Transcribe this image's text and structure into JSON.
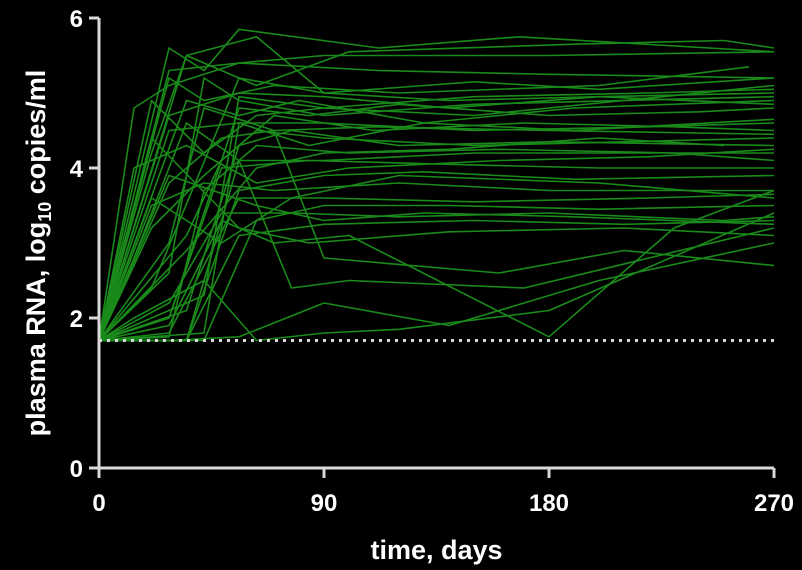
{
  "chart_data": {
    "type": "line",
    "xlabel": "time, days",
    "ylabel_main": "plasma RNA, log",
    "ylabel_sub": "10",
    "ylabel_tail": " copies/ml",
    "xlim": [
      0,
      270
    ],
    "ylim": [
      0,
      6
    ],
    "xticks": [
      0,
      90,
      180,
      270
    ],
    "yticks": [
      0,
      2,
      4,
      6
    ],
    "grid": false,
    "legend": "none",
    "colors": {
      "line": "#1a8a1a",
      "axis": "#d9d9d9",
      "threshold": "#d9d9d9",
      "background": "#000000"
    },
    "threshold": {
      "y": 1.7,
      "style": "dotted"
    },
    "series": [
      {
        "x": [
          0,
          14,
          28,
          56,
          90,
          180,
          270
        ],
        "y": [
          1.7,
          4.8,
          5.1,
          5.4,
          5.5,
          5.5,
          5.55
        ]
      },
      {
        "x": [
          0,
          28,
          42,
          56,
          112,
          168,
          270
        ],
        "y": [
          1.7,
          5.6,
          5.3,
          5.85,
          5.6,
          5.75,
          5.55
        ]
      },
      {
        "x": [
          0,
          21,
          35,
          63,
          100,
          190,
          250,
          270
        ],
        "y": [
          1.7,
          4.2,
          5.5,
          5.1,
          5.55,
          5.65,
          5.7,
          5.6
        ]
      },
      {
        "x": [
          0,
          28,
          56,
          112,
          180,
          270
        ],
        "y": [
          1.7,
          5.3,
          5.4,
          5.3,
          5.25,
          5.2
        ]
      },
      {
        "x": [
          0,
          35,
          63,
          90,
          150,
          200,
          270
        ],
        "y": [
          1.7,
          5.5,
          5.75,
          5.0,
          5.15,
          5.05,
          5.2
        ]
      },
      {
        "x": [
          0,
          28,
          42,
          70,
          120,
          200,
          260
        ],
        "y": [
          1.7,
          5.2,
          4.9,
          5.1,
          5.0,
          5.1,
          5.35
        ]
      },
      {
        "x": [
          0,
          21,
          56,
          90,
          140,
          200,
          270
        ],
        "y": [
          1.7,
          2.4,
          5.2,
          5.0,
          4.9,
          4.95,
          5.0
        ]
      },
      {
        "x": [
          0,
          35,
          56,
          80,
          130,
          190,
          270
        ],
        "y": [
          1.7,
          4.9,
          4.7,
          4.9,
          4.6,
          4.8,
          4.9
        ]
      },
      {
        "x": [
          0,
          28,
          56,
          84,
          120,
          180,
          240,
          270
        ],
        "y": [
          1.7,
          2.0,
          4.8,
          4.7,
          4.85,
          4.7,
          4.75,
          4.8
        ]
      },
      {
        "x": [
          0,
          42,
          56,
          90,
          150,
          220,
          270
        ],
        "y": [
          1.7,
          1.8,
          4.6,
          4.6,
          4.5,
          4.55,
          4.6
        ]
      },
      {
        "x": [
          0,
          28,
          49,
          70,
          110,
          180,
          270
        ],
        "y": [
          1.7,
          3.8,
          4.4,
          4.5,
          4.55,
          4.5,
          4.45
        ]
      },
      {
        "x": [
          0,
          21,
          42,
          63,
          90,
          150,
          210,
          270
        ],
        "y": [
          1.7,
          3.2,
          3.9,
          4.5,
          4.4,
          4.3,
          4.35,
          4.4
        ]
      },
      {
        "x": [
          0,
          35,
          56,
          77,
          120,
          180,
          270
        ],
        "y": [
          1.7,
          2.1,
          4.3,
          4.5,
          4.3,
          4.35,
          4.3
        ]
      },
      {
        "x": [
          0,
          28,
          42,
          63,
          100,
          160,
          230,
          270
        ],
        "y": [
          1.7,
          1.75,
          3.7,
          4.3,
          4.2,
          4.25,
          4.2,
          4.1
        ]
      },
      {
        "x": [
          0,
          14,
          35,
          56,
          90,
          150,
          270
        ],
        "y": [
          1.7,
          2.8,
          4.6,
          4.1,
          4.1,
          4.2,
          4.2
        ]
      },
      {
        "x": [
          0,
          28,
          49,
          84,
          140,
          200,
          270
        ],
        "y": [
          1.7,
          2.0,
          4.0,
          4.1,
          4.05,
          4.0,
          4.0
        ]
      },
      {
        "x": [
          0,
          35,
          56,
          90,
          130,
          190,
          270
        ],
        "y": [
          1.7,
          1.7,
          3.7,
          3.9,
          3.95,
          3.85,
          3.9
        ]
      },
      {
        "x": [
          0,
          21,
          42,
          70,
          120,
          180,
          270
        ],
        "y": [
          1.7,
          3.5,
          3.8,
          3.7,
          3.8,
          3.7,
          3.7
        ]
      },
      {
        "x": [
          0,
          28,
          56,
          90,
          150,
          220,
          270
        ],
        "y": [
          1.7,
          1.8,
          3.6,
          3.6,
          3.55,
          3.6,
          3.65
        ]
      },
      {
        "x": [
          0,
          42,
          63,
          90,
          140,
          200,
          270
        ],
        "y": [
          1.7,
          1.7,
          3.3,
          3.5,
          3.5,
          3.45,
          3.5
        ]
      },
      {
        "x": [
          0,
          28,
          49,
          77,
          120,
          180,
          250,
          270
        ],
        "y": [
          1.7,
          2.2,
          3.4,
          3.4,
          3.35,
          3.4,
          3.3,
          3.35
        ]
      },
      {
        "x": [
          0,
          35,
          56,
          90,
          150,
          210,
          270
        ],
        "y": [
          1.7,
          1.7,
          3.1,
          3.25,
          3.3,
          3.25,
          3.3
        ]
      },
      {
        "x": [
          0,
          28,
          42,
          70,
          90,
          160,
          210,
          270
        ],
        "y": [
          1.7,
          3.0,
          4.8,
          4.5,
          2.8,
          2.6,
          2.9,
          2.7
        ]
      },
      {
        "x": [
          0,
          35,
          56,
          77,
          100,
          170,
          220,
          270
        ],
        "y": [
          1.7,
          1.7,
          4.1,
          2.4,
          2.5,
          2.4,
          2.8,
          3.2
        ]
      },
      {
        "x": [
          0,
          28,
          49,
          70,
          100,
          180,
          230,
          270
        ],
        "y": [
          1.7,
          1.9,
          3.3,
          3.0,
          3.1,
          1.75,
          3.2,
          3.7
        ]
      },
      {
        "x": [
          0,
          14,
          42,
          63,
          90,
          120,
          180,
          270
        ],
        "y": [
          1.7,
          2.0,
          2.5,
          1.7,
          1.8,
          1.85,
          2.1,
          3.4
        ]
      },
      {
        "x": [
          0,
          28,
          56,
          90,
          140,
          200,
          270
        ],
        "y": [
          1.7,
          1.7,
          1.75,
          2.2,
          1.9,
          2.5,
          3.0
        ]
      },
      {
        "x": [
          0,
          21,
          42,
          63,
          90,
          150,
          210,
          270
        ],
        "y": [
          1.7,
          4.9,
          4.2,
          4.7,
          4.8,
          4.7,
          4.9,
          5.1
        ]
      },
      {
        "x": [
          0,
          28,
          56,
          84,
          130,
          190,
          270
        ],
        "y": [
          1.7,
          4.5,
          4.6,
          4.3,
          4.6,
          4.5,
          4.65
        ]
      },
      {
        "x": [
          0,
          14,
          35,
          63,
          100,
          160,
          220,
          270
        ],
        "y": [
          1.7,
          4.0,
          4.3,
          3.8,
          4.0,
          4.1,
          4.15,
          4.25
        ]
      },
      {
        "x": [
          0,
          21,
          49,
          77,
          120,
          200,
          270
        ],
        "y": [
          1.7,
          3.6,
          3.0,
          3.6,
          3.9,
          3.8,
          3.6
        ]
      },
      {
        "x": [
          0,
          28,
          42,
          56,
          90,
          150,
          270
        ],
        "y": [
          1.7,
          2.6,
          5.2,
          4.9,
          4.7,
          4.85,
          4.95
        ]
      },
      {
        "x": [
          0,
          35,
          49,
          70,
          110,
          170,
          230,
          270
        ],
        "y": [
          1.7,
          3.1,
          4.1,
          4.7,
          4.5,
          4.6,
          4.55,
          4.5
        ]
      },
      {
        "x": [
          0,
          28,
          63,
          90,
          130,
          190,
          270
        ],
        "y": [
          1.7,
          3.9,
          3.5,
          3.3,
          3.4,
          3.35,
          3.25
        ]
      },
      {
        "x": [
          0,
          21,
          56,
          84,
          140,
          210,
          270
        ],
        "y": [
          1.7,
          4.4,
          3.2,
          3.0,
          3.15,
          3.2,
          3.1
        ]
      },
      {
        "x": [
          0,
          42,
          56,
          90,
          150,
          220,
          270
        ],
        "y": [
          1.7,
          2.3,
          4.95,
          4.8,
          4.95,
          5.0,
          5.05
        ]
      },
      {
        "x": [
          0,
          35,
          63,
          90,
          140,
          200,
          250
        ],
        "y": [
          1.7,
          2.9,
          4.0,
          4.2,
          4.25,
          4.4,
          4.3
        ]
      },
      {
        "x": [
          0,
          28,
          56,
          90,
          140,
          200,
          270
        ],
        "y": [
          1.7,
          4.7,
          5.0,
          4.95,
          4.8,
          4.95,
          4.85
        ]
      }
    ]
  }
}
